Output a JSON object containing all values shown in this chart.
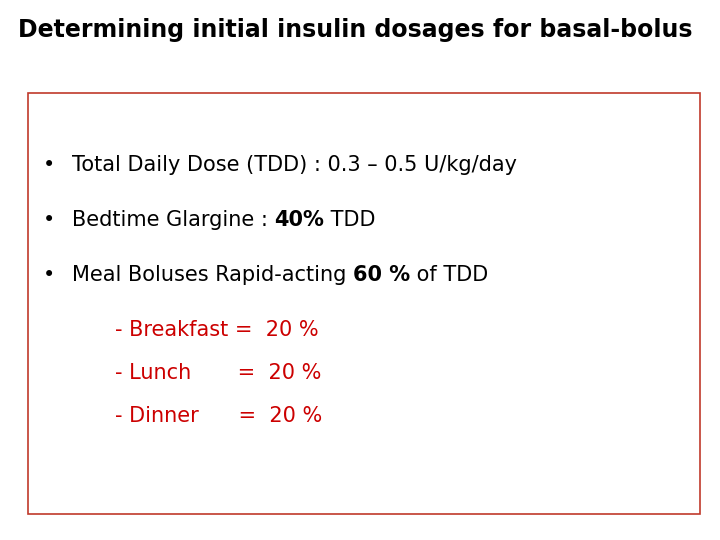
{
  "title": "Determining initial insulin dosages for basal-bolus",
  "title_fontsize": 17,
  "title_fontweight": "bold",
  "title_color": "#000000",
  "background_color": "#ffffff",
  "box_edge_color": "#c0392b",
  "box_facecolor": "#ffffff",
  "bullet_color": "#000000",
  "red_color": "#cc0000",
  "bullet1": "Total Daily Dose (TDD) : 0.3 – 0.5 U/kg/day",
  "bullet2_pre": "Bedtime Glargine : ",
  "bullet2_bold": "40%",
  "bullet2_suf": " TDD",
  "bullet3_pre": "Meal Boluses Rapid-acting ",
  "bullet3_bold": "60 %",
  "bullet3_suf": " of TDD",
  "sub1": "- Breakfast =  20 %",
  "sub2": "- Lunch       =  20 %",
  "sub3": "- Dinner      =  20 %",
  "bullet_fontsize": 15,
  "sub_fontsize": 15,
  "figwidth": 7.2,
  "figheight": 5.4,
  "dpi": 100
}
